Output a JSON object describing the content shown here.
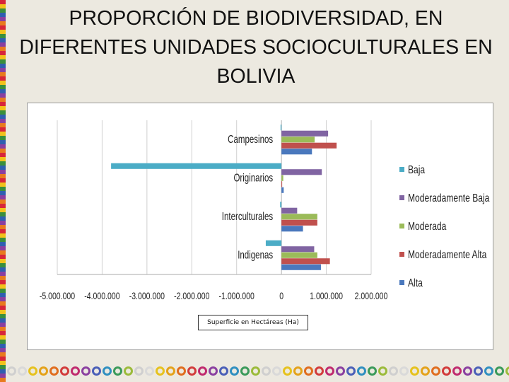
{
  "title_lines": [
    "PROPORCIÓN DE BIODIVERSIDAD, EN",
    "DIFERENTES UNIDADES SOCIOCULTURALES EN",
    "BOLIVIA"
  ],
  "chart_data": {
    "type": "bar",
    "orientation": "horizontal",
    "title": "PROPORCIÓN DE BIODIVERSIDAD, EN DIFERENTES UNIDADES SOCIOCULTURALES EN BOLIVIA",
    "xlabel": "Superficie en Hectáreas (Ha)",
    "ylabel": "",
    "categories": [
      "Indigenas",
      "Interculturales",
      "Originarios",
      "Campesinos"
    ],
    "series": [
      {
        "name": "Alta",
        "color": "#4a78bd",
        "values": [
          880000,
          480000,
          50000,
          680000
        ]
      },
      {
        "name": "Moderadamente Alta",
        "color": "#c0504d",
        "values": [
          1080000,
          800000,
          10000,
          1230000
        ]
      },
      {
        "name": "Moderada",
        "color": "#9bbb59",
        "values": [
          800000,
          800000,
          40000,
          740000
        ]
      },
      {
        "name": "Moderadamente Baja",
        "color": "#8064a2",
        "values": [
          730000,
          350000,
          900000,
          1040000
        ]
      },
      {
        "name": "Baja",
        "color": "#4bacc6",
        "values": [
          -350000,
          -30000,
          -3800000,
          -20000
        ]
      }
    ],
    "legend_order": [
      "Baja",
      "Moderadamente Baja",
      "Moderada",
      "Moderadamente Alta",
      "Alta"
    ],
    "legend_position": "right",
    "xlim": [
      -5000000,
      2000000
    ],
    "xticks": [
      -5000000,
      -4000000,
      -3000000,
      -2000000,
      -1000000,
      0,
      1000000,
      2000000
    ],
    "xtick_labels": [
      "-5.000.000",
      "-4.000.000",
      "-3.000.000",
      "-2.000.000",
      "-1.000.000",
      "0",
      "1.000.000",
      "2.000.000"
    ],
    "grid": "vertical major"
  }
}
